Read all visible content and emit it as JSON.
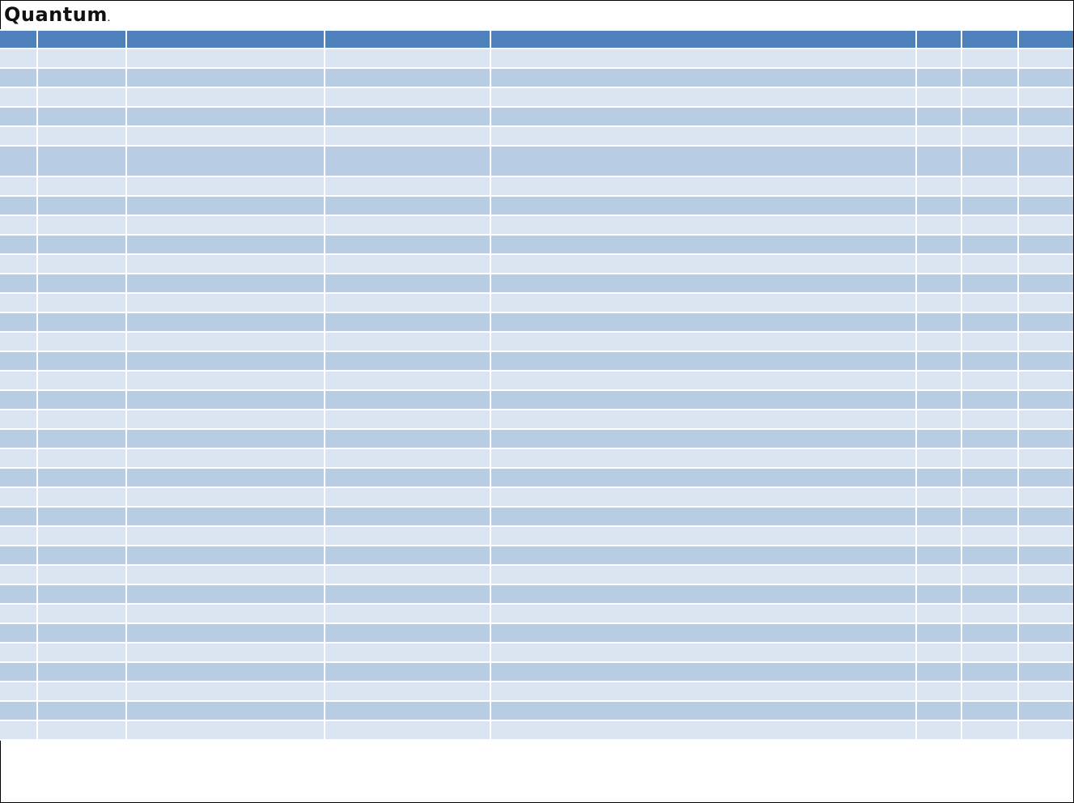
{
  "logo": {
    "text": "Quantum",
    "mark": "."
  },
  "colors": {
    "header": "#4f81bd",
    "row_light": "#dbe5f1",
    "row_dark": "#b8cce4"
  },
  "table": {
    "headers": [
      "",
      "",
      "",
      "",
      "",
      "",
      "",
      ""
    ],
    "rows": [
      [
        "",
        "",
        "",
        "",
        "",
        "",
        "",
        ""
      ],
      [
        "",
        "",
        "",
        "",
        "",
        "",
        "",
        ""
      ],
      [
        "",
        "",
        "",
        "",
        "",
        "",
        "",
        ""
      ],
      [
        "",
        "",
        "",
        "",
        "",
        "",
        "",
        ""
      ],
      [
        "",
        "",
        "",
        "",
        "",
        "",
        "",
        ""
      ],
      [
        "",
        "",
        "",
        "",
        "",
        "",
        "",
        ""
      ],
      [
        "",
        "",
        "",
        "",
        "",
        "",
        "",
        ""
      ],
      [
        "",
        "",
        "",
        "",
        "",
        "",
        "",
        ""
      ],
      [
        "",
        "",
        "",
        "",
        "",
        "",
        "",
        ""
      ],
      [
        "",
        "",
        "",
        "",
        "",
        "",
        "",
        ""
      ],
      [
        "",
        "",
        "",
        "",
        "",
        "",
        "",
        ""
      ],
      [
        "",
        "",
        "",
        "",
        "",
        "",
        "",
        ""
      ],
      [
        "",
        "",
        "",
        "",
        "",
        "",
        "",
        ""
      ],
      [
        "",
        "",
        "",
        "",
        "",
        "",
        "",
        ""
      ],
      [
        "",
        "",
        "",
        "",
        "",
        "",
        "",
        ""
      ],
      [
        "",
        "",
        "",
        "",
        "",
        "",
        "",
        ""
      ],
      [
        "",
        "",
        "",
        "",
        "",
        "",
        "",
        ""
      ],
      [
        "",
        "",
        "",
        "",
        "",
        "",
        "",
        ""
      ],
      [
        "",
        "",
        "",
        "",
        "",
        "",
        "",
        ""
      ],
      [
        "",
        "",
        "",
        "",
        "",
        "",
        "",
        ""
      ],
      [
        "",
        "",
        "",
        "",
        "",
        "",
        "",
        ""
      ],
      [
        "",
        "",
        "",
        "",
        "",
        "",
        "",
        ""
      ],
      [
        "",
        "",
        "",
        "",
        "",
        "",
        "",
        ""
      ],
      [
        "",
        "",
        "",
        "",
        "",
        "",
        "",
        ""
      ],
      [
        "",
        "",
        "",
        "",
        "",
        "",
        "",
        ""
      ],
      [
        "",
        "",
        "",
        "",
        "",
        "",
        "",
        ""
      ],
      [
        "",
        "",
        "",
        "",
        "",
        "",
        "",
        ""
      ],
      [
        "",
        "",
        "",
        "",
        "",
        "",
        "",
        ""
      ],
      [
        "",
        "",
        "",
        "",
        "",
        "",
        "",
        ""
      ],
      [
        "",
        "",
        "",
        "",
        "",
        "",
        "",
        ""
      ],
      [
        "",
        "",
        "",
        "",
        "",
        "",
        "",
        ""
      ],
      [
        "",
        "",
        "",
        "",
        "",
        "",
        "",
        ""
      ],
      [
        "",
        "",
        "",
        "",
        "",
        "",
        "",
        ""
      ],
      [
        "",
        "",
        "",
        "",
        "",
        "",
        "",
        ""
      ],
      [
        "",
        "",
        "",
        "",
        "",
        "",
        "",
        ""
      ]
    ]
  }
}
